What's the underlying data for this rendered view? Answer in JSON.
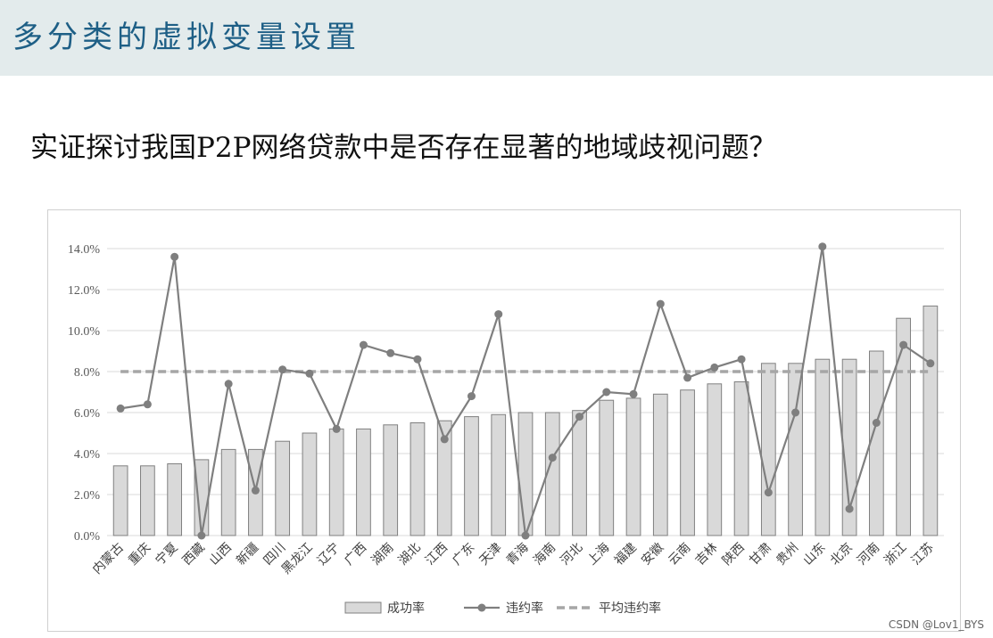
{
  "page": {
    "title": "多分类的虚拟变量设置",
    "question": "实证探讨我国P2P网络贷款中是否存在显著的地域歧视问题？",
    "watermark": "CSDN @Lov1_BYS"
  },
  "colors": {
    "header_bg": "#e3ebec",
    "title": "#1e5f86",
    "bar_fill": "#d9d9d9",
    "bar_stroke": "#808080",
    "line": "#7f7f7f",
    "avg_line": "#a6a6a6",
    "grid": "#d9d9d9"
  },
  "chart_data": {
    "type": "bar",
    "title": "",
    "xlabel": "",
    "ylabel": "",
    "ylim": [
      0,
      0.14
    ],
    "y_ticks": [
      "0.0%",
      "2.0%",
      "4.0%",
      "6.0%",
      "8.0%",
      "10.0%",
      "12.0%",
      "14.0%"
    ],
    "grid": true,
    "legend_position": "bottom",
    "categories": [
      "内蒙古",
      "重庆",
      "宁夏",
      "西藏",
      "山西",
      "新疆",
      "四川",
      "黑龙江",
      "辽宁",
      "广西",
      "湖南",
      "湖北",
      "江西",
      "广东",
      "天津",
      "青海",
      "海南",
      "河北",
      "上海",
      "福建",
      "安徽",
      "云南",
      "吉林",
      "陕西",
      "甘肃",
      "贵州",
      "山东",
      "北京",
      "河南",
      "浙江",
      "江苏"
    ],
    "series": [
      {
        "name": "成功率",
        "type": "bar",
        "values": [
          0.034,
          0.034,
          0.035,
          0.037,
          0.042,
          0.042,
          0.046,
          0.05,
          0.052,
          0.052,
          0.054,
          0.055,
          0.056,
          0.058,
          0.059,
          0.06,
          0.06,
          0.061,
          0.066,
          0.067,
          0.069,
          0.071,
          0.074,
          0.075,
          0.084,
          0.084,
          0.086,
          0.086,
          0.09,
          0.106,
          0.112
        ]
      },
      {
        "name": "违约率",
        "type": "line",
        "values": [
          0.062,
          0.064,
          0.136,
          0.0,
          0.074,
          0.022,
          0.081,
          0.079,
          0.052,
          0.093,
          0.089,
          0.086,
          0.047,
          0.068,
          0.108,
          0.0,
          0.038,
          0.058,
          0.07,
          0.069,
          0.113,
          0.077,
          0.082,
          0.086,
          0.021,
          0.06,
          0.141,
          0.013,
          0.055,
          0.093,
          0.084
        ]
      },
      {
        "name": "平均违约率",
        "type": "dashed-line",
        "value": 0.08
      }
    ]
  }
}
